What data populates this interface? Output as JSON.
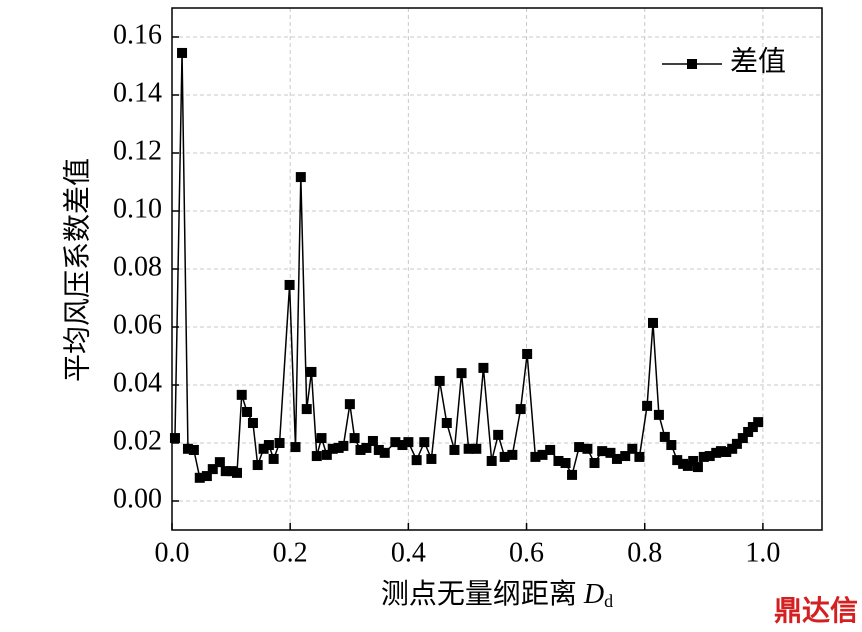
{
  "chart_data": {
    "type": "line",
    "y_label": "平均风压系数差值",
    "x_label": {
      "text": "测点无量纲距离 ",
      "symbol": "D",
      "subscript": "d"
    },
    "watermark": "鼎达信",
    "xlim": [
      0,
      1.1
    ],
    "ylim": [
      -0.01,
      0.17
    ],
    "xticks": [
      {
        "value": 0,
        "label": "0.0"
      },
      {
        "value": 0.2,
        "label": "0.2"
      },
      {
        "value": 0.4,
        "label": "0.4"
      },
      {
        "value": 0.6,
        "label": "0.6"
      },
      {
        "value": 0.8,
        "label": "0.8"
      },
      {
        "value": 1,
        "label": "1.0"
      }
    ],
    "yticks": [
      {
        "value": 0,
        "label": "0.00"
      },
      {
        "value": 0.02,
        "label": "0.02"
      },
      {
        "value": 0.04,
        "label": "0.04"
      },
      {
        "value": 0.06,
        "label": "0.06"
      },
      {
        "value": 0.08,
        "label": "0.08"
      },
      {
        "value": 0.1,
        "label": "0.10"
      },
      {
        "value": 0.12,
        "label": "0.12"
      },
      {
        "value": 0.14,
        "label": "0.14"
      },
      {
        "value": 0.16,
        "label": "0.16"
      }
    ],
    "grid": true,
    "legend": "upper right",
    "x": [
      0.005,
      0.017,
      0.027,
      0.037,
      0.047,
      0.059,
      0.069,
      0.081,
      0.091,
      0.101,
      0.11,
      0.118,
      0.127,
      0.137,
      0.145,
      0.155,
      0.164,
      0.172,
      0.182,
      0.199,
      0.209,
      0.218,
      0.228,
      0.236,
      0.245,
      0.253,
      0.262,
      0.272,
      0.282,
      0.29,
      0.301,
      0.309,
      0.319,
      0.329,
      0.34,
      0.35,
      0.36,
      0.378,
      0.39,
      0.4,
      0.414,
      0.427,
      0.439,
      0.453,
      0.465,
      0.478,
      0.49,
      0.502,
      0.515,
      0.527,
      0.541,
      0.552,
      0.563,
      0.576,
      0.59,
      0.601,
      0.615,
      0.627,
      0.64,
      0.654,
      0.666,
      0.677,
      0.689,
      0.703,
      0.715,
      0.728,
      0.742,
      0.753,
      0.767,
      0.779,
      0.791,
      0.804,
      0.814,
      0.824,
      0.834,
      0.845,
      0.855,
      0.865,
      0.873,
      0.882,
      0.89,
      0.9,
      0.91,
      0.921,
      0.929,
      0.938,
      0.948,
      0.956,
      0.966,
      0.975,
      0.983,
      0.992
    ],
    "series": [
      {
        "name": "差值",
        "color": "#000000",
        "values": [
          0.0217,
          0.1545,
          0.018,
          0.0176,
          0.008,
          0.0086,
          0.011,
          0.0134,
          0.0103,
          0.0103,
          0.0097,
          0.0366,
          0.0307,
          0.0269,
          0.0124,
          0.018,
          0.0193,
          0.0145,
          0.02,
          0.0745,
          0.0186,
          0.1117,
          0.0317,
          0.0445,
          0.0155,
          0.0217,
          0.0159,
          0.018,
          0.0183,
          0.019,
          0.0334,
          0.0217,
          0.0176,
          0.0183,
          0.0207,
          0.0176,
          0.0166,
          0.0203,
          0.0193,
          0.0203,
          0.0141,
          0.0203,
          0.0145,
          0.0414,
          0.0269,
          0.0176,
          0.0441,
          0.018,
          0.018,
          0.0459,
          0.0138,
          0.0228,
          0.0152,
          0.0159,
          0.0317,
          0.0507,
          0.0152,
          0.0159,
          0.0176,
          0.0138,
          0.0131,
          0.009,
          0.0186,
          0.018,
          0.0131,
          0.0172,
          0.0166,
          0.0145,
          0.0155,
          0.018,
          0.0152,
          0.0328,
          0.0614,
          0.0297,
          0.0221,
          0.0193,
          0.0141,
          0.0128,
          0.0121,
          0.0138,
          0.0117,
          0.0152,
          0.0155,
          0.0166,
          0.0172,
          0.0169,
          0.018,
          0.0197,
          0.0217,
          0.0238,
          0.0255,
          0.0272
        ]
      }
    ]
  }
}
